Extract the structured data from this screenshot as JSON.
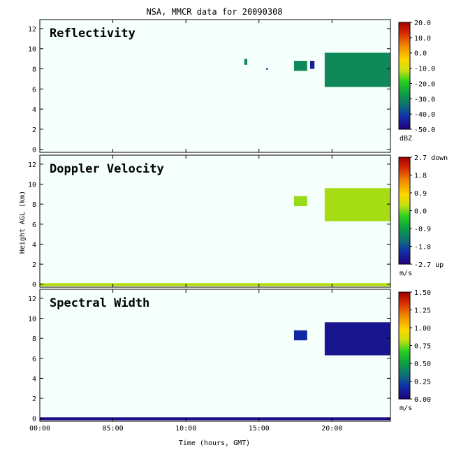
{
  "title": "NSA, MMCR data for 20090308",
  "xlabel": "Time (hours, GMT)",
  "ylabel": "Height AGL (km)",
  "colors": {
    "background": "#ffffff",
    "plot_bg": "#f5fffb"
  },
  "chart_data": [
    {
      "type": "heatmap",
      "panel_title": "Reflectivity",
      "x": {
        "min": 0,
        "max": 24,
        "ticks": [
          0,
          5,
          10,
          15,
          20
        ],
        "tick_labels": [
          "00:00",
          "05:00",
          "10:00",
          "15:00",
          "20:00"
        ]
      },
      "y": {
        "min": -0.3,
        "max": 12.9,
        "ticks": [
          0,
          2,
          4,
          6,
          8,
          10,
          12
        ]
      },
      "colorbar": {
        "min": -50,
        "max": 20,
        "ticks": [
          "20.0",
          "10.0",
          "0.0",
          "-10.0",
          "-20.0",
          "-30.0",
          "-40.0",
          "-50.0"
        ],
        "unit": "dBZ"
      },
      "echoes": [
        {
          "t0": 14.0,
          "t1": 14.2,
          "h0": 8.4,
          "h1": 9.0,
          "value": -30
        },
        {
          "t0": 15.5,
          "t1": 15.6,
          "h0": 7.9,
          "h1": 8.1,
          "value": -40
        },
        {
          "t0": 17.4,
          "t1": 18.3,
          "h0": 7.8,
          "h1": 8.8,
          "value": -30
        },
        {
          "t0": 18.5,
          "t1": 18.8,
          "h0": 8.0,
          "h1": 8.8,
          "value": -45
        },
        {
          "t0": 19.5,
          "t1": 24.0,
          "h0": 6.2,
          "h1": 9.6,
          "value": -30
        }
      ]
    },
    {
      "type": "heatmap",
      "panel_title": "Doppler Velocity",
      "x": {
        "min": 0,
        "max": 24,
        "ticks": [
          0,
          5,
          10,
          15,
          20
        ],
        "tick_labels": [
          "00:00",
          "05:00",
          "10:00",
          "15:00",
          "20:00"
        ]
      },
      "y": {
        "min": -0.3,
        "max": 12.9,
        "ticks": [
          0,
          2,
          4,
          6,
          8,
          10,
          12
        ]
      },
      "colorbar": {
        "min": -2.7,
        "max": 2.7,
        "ticks": [
          "2.7 down",
          "1.8",
          "0.9",
          "0.0",
          "-0.9",
          "-1.8",
          "-2.7 up"
        ],
        "unit": "m/s"
      },
      "echoes": [
        {
          "t0": 17.4,
          "t1": 18.3,
          "h0": 7.8,
          "h1": 8.8,
          "value": 0.1
        },
        {
          "t0": 19.5,
          "t1": 24.0,
          "h0": 6.3,
          "h1": 9.6,
          "value": 0.15
        },
        {
          "t0": 0.0,
          "t1": 24.0,
          "h0": -0.2,
          "h1": 0.1,
          "value": 0.2
        }
      ]
    },
    {
      "type": "heatmap",
      "panel_title": "Spectral Width",
      "x": {
        "min": 0,
        "max": 24,
        "ticks": [
          0,
          5,
          10,
          15,
          20
        ],
        "tick_labels": [
          "00:00",
          "05:00",
          "10:00",
          "15:00",
          "20:00"
        ]
      },
      "y": {
        "min": -0.3,
        "max": 12.9,
        "ticks": [
          0,
          2,
          4,
          6,
          8,
          10,
          12
        ]
      },
      "colorbar": {
        "min": 0,
        "max": 1.5,
        "ticks": [
          "1.50",
          "1.25",
          "1.00",
          "0.75",
          "0.50",
          "0.25",
          "0.00"
        ],
        "unit": "m/s"
      },
      "echoes": [
        {
          "t0": 17.4,
          "t1": 18.3,
          "h0": 7.8,
          "h1": 8.8,
          "value": 0.15
        },
        {
          "t0": 19.5,
          "t1": 24.0,
          "h0": 6.3,
          "h1": 9.6,
          "value": 0.08
        },
        {
          "t0": 0.0,
          "t1": 24.0,
          "h0": -0.2,
          "h1": 0.1,
          "value": 0.05
        }
      ]
    }
  ]
}
